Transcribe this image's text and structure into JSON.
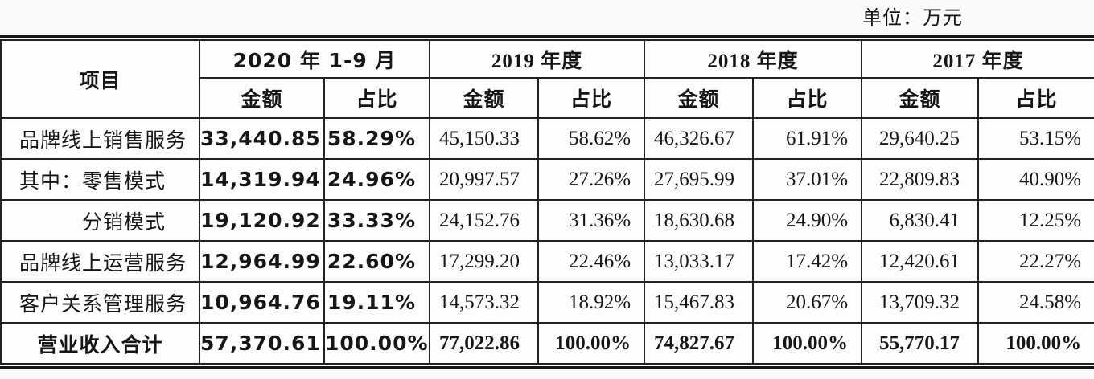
{
  "unit_label": "单位：万元",
  "table": {
    "item_header": "项目",
    "col_groups": [
      {
        "label": "2020 年 1-9 月"
      },
      {
        "label": "2019 年度"
      },
      {
        "label": "2018 年度"
      },
      {
        "label": "2017 年度"
      }
    ],
    "sub_headers": {
      "amount": "金额",
      "ratio": "占比"
    },
    "rows": [
      {
        "label": "品牌线上销售服务",
        "indent": false,
        "total": false,
        "values": [
          "33,440.85",
          "58.29%",
          "45,150.33",
          "58.62%",
          "46,326.67",
          "61.91%",
          "29,640.25",
          "53.15%"
        ]
      },
      {
        "label": "其中：零售模式",
        "indent": false,
        "total": false,
        "values": [
          "14,319.94",
          "24.96%",
          "20,997.57",
          "27.26%",
          "27,695.99",
          "37.01%",
          "22,809.83",
          "40.90%"
        ]
      },
      {
        "label": "分销模式",
        "indent": true,
        "total": false,
        "values": [
          "19,120.92",
          "33.33%",
          "24,152.76",
          "31.36%",
          "18,630.68",
          "24.90%",
          "6,830.41",
          "12.25%"
        ]
      },
      {
        "label": "品牌线上运营服务",
        "indent": false,
        "total": false,
        "values": [
          "12,964.99",
          "22.60%",
          "17,299.20",
          "22.46%",
          "13,033.17",
          "17.42%",
          "12,420.61",
          "22.27%"
        ]
      },
      {
        "label": "客户关系管理服务",
        "indent": false,
        "total": false,
        "values": [
          "10,964.76",
          "19.11%",
          "14,573.32",
          "18.92%",
          "15,467.83",
          "20.67%",
          "13,709.32",
          "24.58%"
        ]
      },
      {
        "label": "营业收入合计",
        "indent": false,
        "total": true,
        "values": [
          "57,370.61",
          "100.00%",
          "77,022.86",
          "100.00%",
          "74,827.67",
          "100.00%",
          "55,770.17",
          "100.00%"
        ]
      }
    ]
  }
}
